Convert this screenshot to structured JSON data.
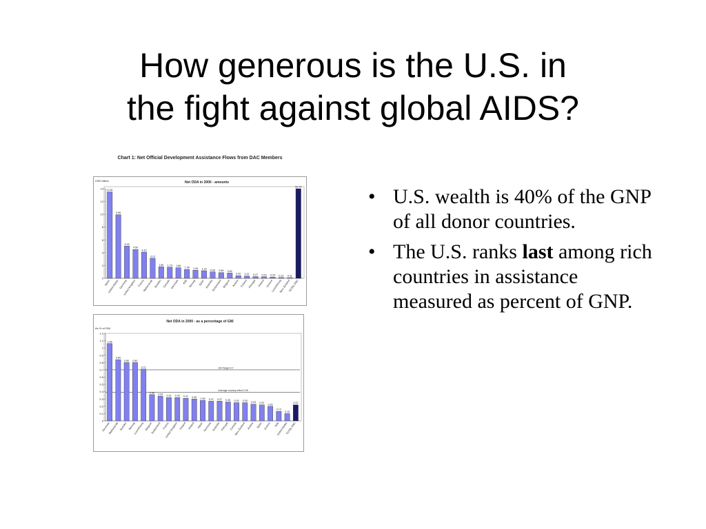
{
  "slide": {
    "title_line1": "How generous is the U.S. in",
    "title_line2": "the fight against global AIDS?",
    "bullets": [
      {
        "before": "U.S. wealth is 40% of the GNP of all donor countries.",
        "bold": "",
        "after": ""
      },
      {
        "before": "The U.S. ranks ",
        "bold": "last",
        "after": " among rich countries in assistance measured as percent of GNP."
      }
    ],
    "figure_caption": "Chart 1: Net Official Development Assistance Flows from DAC Members"
  },
  "chart_data": [
    {
      "type": "bar",
      "title": "Net ODA in 2000 - amounts",
      "ylabel": "USD billion",
      "ylim": [
        0,
        14
      ],
      "yticks": [
        0,
        2,
        4,
        6,
        8,
        10,
        12,
        14
      ],
      "grid": false,
      "categories": [
        "Japan",
        "United States",
        "Germany",
        "United Kingdom",
        "France",
        "Netherlands",
        "Sweden",
        "Canada",
        "Denmark",
        "Italy",
        "Norway",
        "Spain",
        "Australia",
        "Switzerland",
        "Belgium",
        "Austria",
        "Finland",
        "Portugal",
        "Ireland",
        "Greece",
        "Luxembourg",
        "New Zealand",
        "TOTAL DAC"
      ],
      "values": [
        13.51,
        9.95,
        5.03,
        4.5,
        4.1,
        3.13,
        1.8,
        1.74,
        1.66,
        1.38,
        1.26,
        1.19,
        0.99,
        0.89,
        0.82,
        0.42,
        0.37,
        0.27,
        0.23,
        0.2,
        0.12,
        0.11,
        53.74
      ],
      "value_labels": [
        "13.51",
        "9.95",
        "5.03",
        "4.50",
        "4.10",
        "3.13",
        "1.80",
        "1.74",
        "1.66",
        "1.38",
        "1.26",
        "1.19",
        "0.99",
        "0.89",
        "0.82",
        "0.42",
        "0.37",
        "0.27",
        "0.23",
        "0.20",
        "0.12",
        "0.11",
        "53.74"
      ],
      "colors": {
        "bar": "#8080ee",
        "total": "#1a1a66"
      }
    },
    {
      "type": "bar",
      "title": "Net ODA in 2000 - as a percentage of GNI",
      "ylabel": "As % of GNI",
      "ylim": [
        0,
        1.2
      ],
      "yticks": [
        0,
        0.1,
        0.2,
        0.3,
        0.4,
        0.5,
        0.6,
        0.7,
        0.8,
        0.9,
        1.0,
        1.1,
        1.2
      ],
      "grid": false,
      "categories": [
        "Denmark",
        "Netherlands",
        "Sweden",
        "Norway",
        "Luxembourg",
        "Belgium",
        "Switzerland",
        "France",
        "United Kingdom",
        "Finland",
        "Ireland",
        "Japan",
        "Germany",
        "Australia",
        "Portugal",
        "Canada",
        "New Zealand",
        "Austria",
        "Spain",
        "Greece",
        "Italy",
        "United States",
        "TOTAL DAC"
      ],
      "values": [
        1.06,
        0.84,
        0.8,
        0.8,
        0.71,
        0.36,
        0.34,
        0.32,
        0.32,
        0.31,
        0.3,
        0.28,
        0.27,
        0.27,
        0.26,
        0.25,
        0.25,
        0.23,
        0.22,
        0.2,
        0.13,
        0.1,
        0.22
      ],
      "value_labels": [
        "1.06",
        "0.84",
        "0.80",
        "0.80",
        "0.71",
        "0.36",
        "0.34",
        "0.32",
        "0.32",
        "0.31",
        "0.30",
        "0.28",
        "0.27",
        "0.27",
        "0.26",
        "0.25",
        "0.25",
        "0.23",
        "0.22",
        "0.20",
        "0.13",
        "0.10",
        "0.22"
      ],
      "reference_lines": [
        {
          "value": 0.7,
          "label": "UN Target 0.7"
        },
        {
          "value": 0.39,
          "label": "Average country effort 0.39"
        }
      ],
      "colors": {
        "bar": "#8080ee",
        "total": "#1a1a66"
      }
    }
  ]
}
